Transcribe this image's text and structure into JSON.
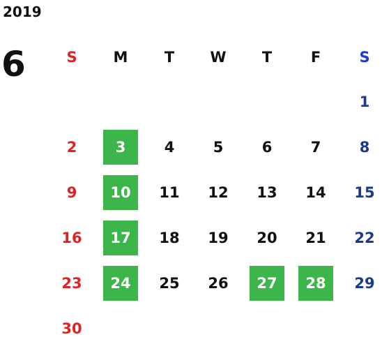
{
  "year": "2019",
  "month": "6",
  "weekdays": [
    "S",
    "M",
    "T",
    "W",
    "T",
    "F",
    "S"
  ],
  "weeks": [
    [
      "",
      "",
      "",
      "",
      "",
      "",
      "1"
    ],
    [
      "2",
      "3",
      "4",
      "5",
      "6",
      "7",
      "8"
    ],
    [
      "9",
      "10",
      "11",
      "12",
      "13",
      "14",
      "15"
    ],
    [
      "16",
      "17",
      "18",
      "19",
      "20",
      "21",
      "22"
    ],
    [
      "23",
      "24",
      "25",
      "26",
      "27",
      "28",
      "29"
    ],
    [
      "30",
      "",
      "",
      "",
      "",
      "",
      ""
    ]
  ],
  "highlighted_days": [
    "3",
    "10",
    "17",
    "24",
    "27",
    "28"
  ],
  "colors": {
    "sunday": "#e02222",
    "saturday_header": "#1f3ad6",
    "saturday": "#1a3a8f",
    "highlight": "#3cb54a",
    "text": "#111111"
  }
}
